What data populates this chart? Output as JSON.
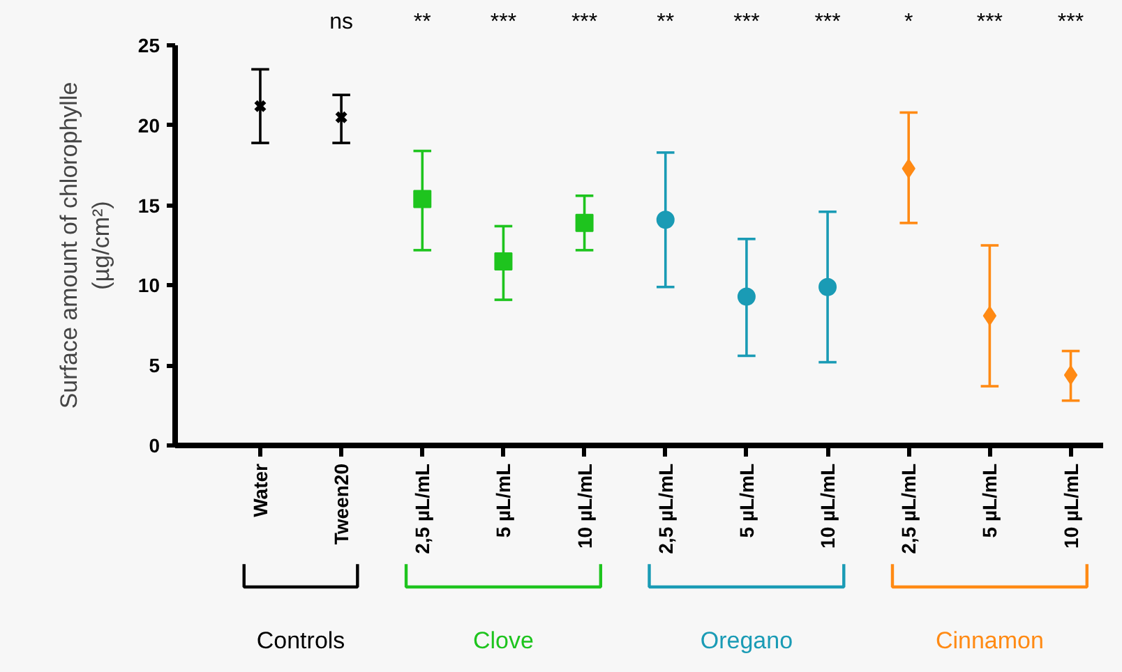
{
  "chart_data": {
    "type": "scatter",
    "ylabel": "Surface amount of chlorophylle\n(µg/cm²)",
    "categories": [
      "Water",
      "Tween20",
      "2,5 µL/mL",
      "5 µL/mL",
      "10 µL/mL",
      "2,5 µL/mL",
      "5 µL/mL",
      "10 µL/mL",
      "2,5 µL/mL",
      "5 µL/mL",
      "10 µL/mL"
    ],
    "annotations": [
      "ns",
      "**",
      "***",
      "***",
      "**",
      "***",
      "***",
      "*",
      "***",
      "***"
    ],
    "ylim": [
      0,
      25
    ],
    "yticks": [
      0,
      5,
      10,
      15,
      20,
      25
    ],
    "grid": false,
    "legend": "bottom",
    "series": [
      {
        "name": "Controls",
        "color": "#000000",
        "marker": "cross",
        "values": [
          21.2,
          20.5,
          null,
          null,
          null,
          null,
          null,
          null,
          null,
          null,
          null
        ],
        "errors": [
          [
            18.9,
            23.5
          ],
          [
            18.9,
            21.9
          ],
          null,
          null,
          null,
          null,
          null,
          null,
          null,
          null,
          null
        ]
      },
      {
        "name": "Clove",
        "color": "#1ec41e",
        "marker": "square",
        "values": [
          null,
          null,
          15.4,
          11.5,
          13.9,
          null,
          null,
          null,
          null,
          null,
          null
        ],
        "errors": [
          null,
          null,
          [
            12.2,
            18.4
          ],
          [
            9.1,
            13.7
          ],
          [
            12.2,
            15.6
          ],
          null,
          null,
          null,
          null,
          null,
          null
        ]
      },
      {
        "name": "Oregano",
        "color": "#1a9bb5",
        "marker": "circle",
        "values": [
          null,
          null,
          null,
          null,
          null,
          14.1,
          9.3,
          9.9,
          null,
          null,
          null
        ],
        "errors": [
          null,
          null,
          null,
          null,
          null,
          [
            9.9,
            18.3
          ],
          [
            5.6,
            12.9
          ],
          [
            5.2,
            14.6
          ],
          null,
          null,
          null
        ]
      },
      {
        "name": "Cinnamon",
        "color": "#ff8a14",
        "marker": "diamond",
        "values": [
          null,
          null,
          null,
          null,
          null,
          null,
          null,
          null,
          17.3,
          8.1,
          4.4
        ],
        "errors": [
          null,
          null,
          null,
          null,
          null,
          null,
          null,
          null,
          [
            13.9,
            20.8
          ],
          [
            3.7,
            12.5
          ],
          [
            2.8,
            5.9
          ]
        ]
      }
    ]
  }
}
